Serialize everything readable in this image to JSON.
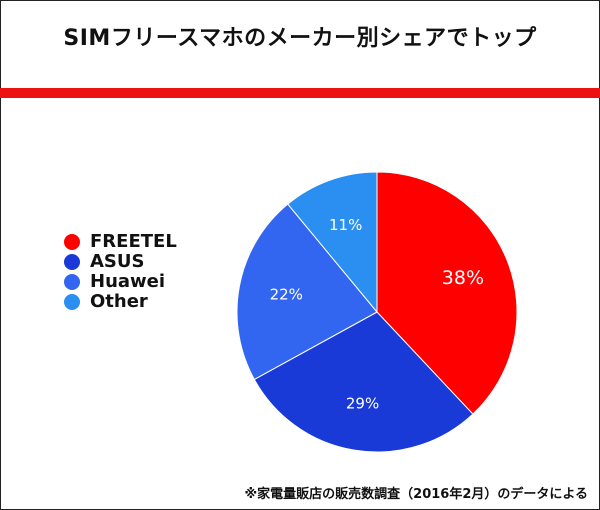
{
  "header": {
    "title": "SIMフリースマホのメーカー別シェアでトップ"
  },
  "colors": {
    "accent_bar": "#ee1111",
    "freetel": "#ff0000",
    "asus": "#1a3ad8",
    "huawei": "#3366f0",
    "other": "#2b8ff2"
  },
  "chart_data": {
    "type": "pie",
    "title": "",
    "legend_position": "left",
    "slices": [
      {
        "name": "FREETEL",
        "value": 38,
        "label": "38%",
        "color": "#ff0000"
      },
      {
        "name": "ASUS",
        "value": 29,
        "label": "29%",
        "color": "#1a3ad8"
      },
      {
        "name": "Huawei",
        "value": 22,
        "label": "22%",
        "color": "#3366f0"
      },
      {
        "name": "Other",
        "value": 11,
        "label": "11%",
        "color": "#2b8ff2"
      }
    ]
  },
  "footnote": "※家電量販店の販売数調査（2016年2月）のデータによる"
}
